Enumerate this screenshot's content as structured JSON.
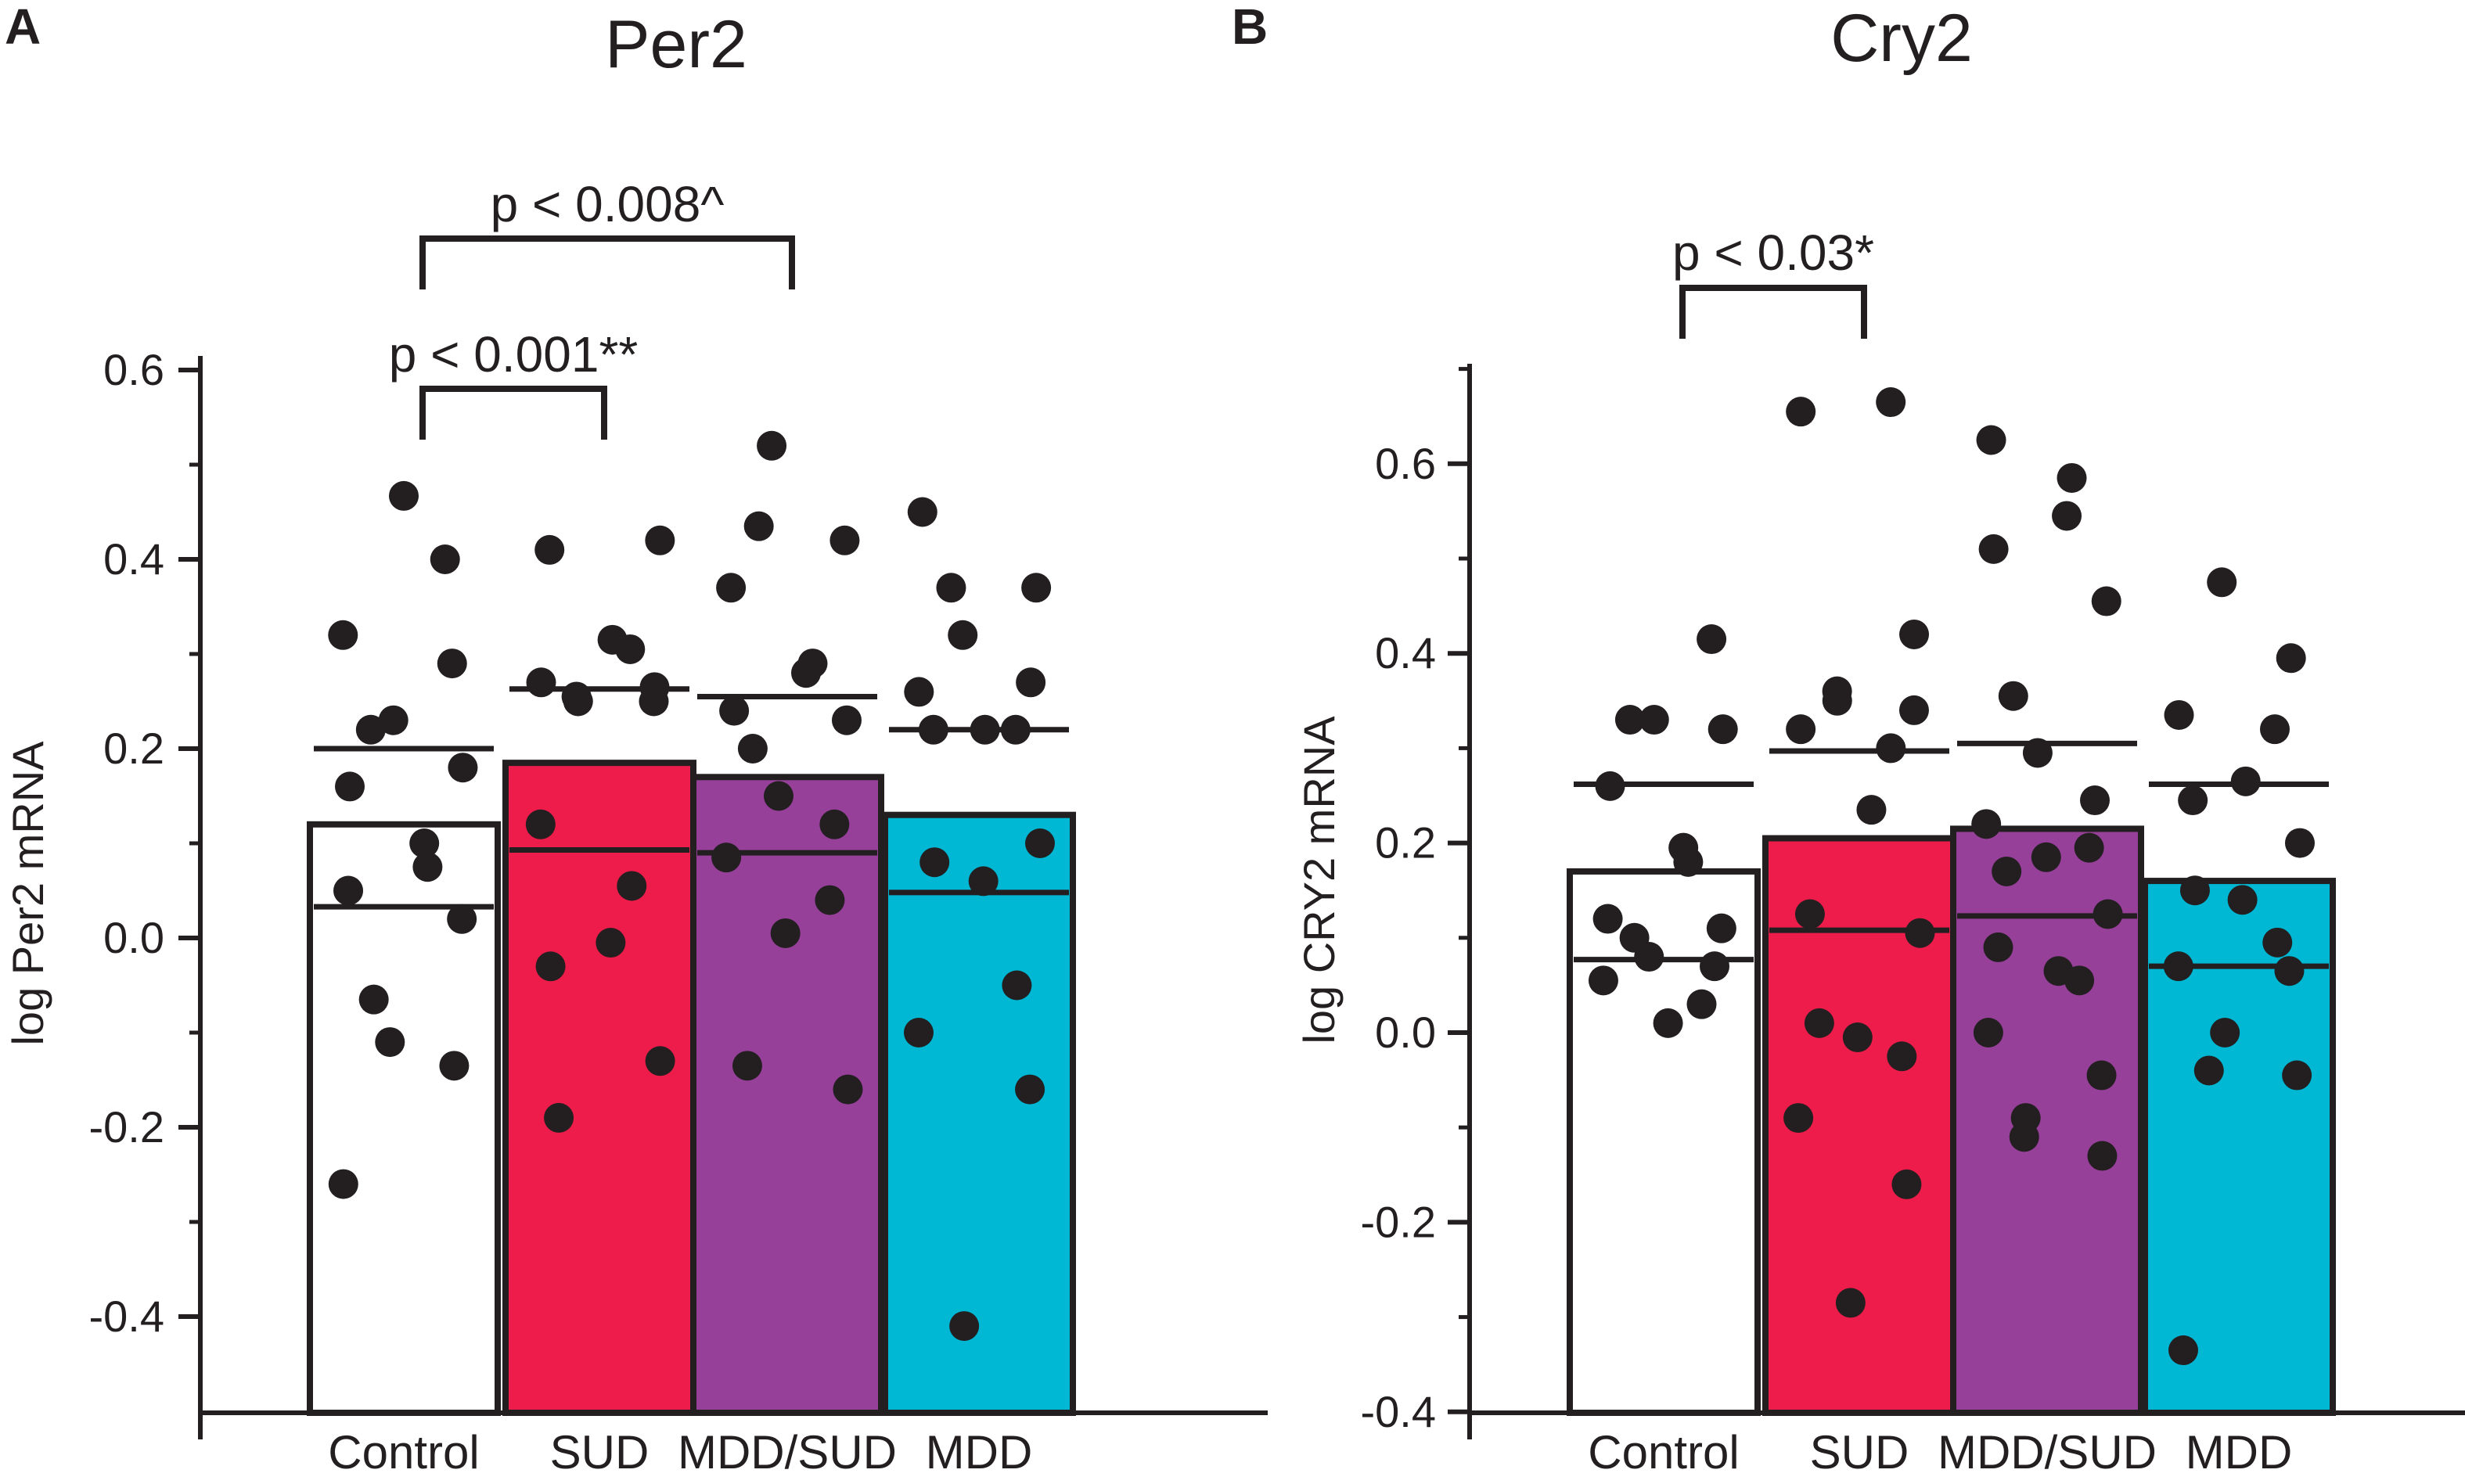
{
  "chart_data": [
    {
      "type": "bar",
      "panel": "A",
      "title": "Per2",
      "xlabel": "",
      "ylabel": "log Per2 mRNA",
      "ylim": [
        -0.5,
        0.6
      ],
      "yticks": [
        0.6,
        0.4,
        0.2,
        0.0,
        -0.2,
        -0.4
      ],
      "ytick_labels": [
        "0.6",
        "0.4",
        "0.2",
        "0.0",
        "-0.2",
        "-0.4"
      ],
      "categories": [
        "Control",
        "SUD",
        "MDD/SUD",
        "MDD"
      ],
      "colors": [
        "#ffffff",
        "#ed1c4a",
        "#96409a",
        "#00b8d4"
      ],
      "values": [
        0.12,
        0.185,
        0.17,
        0.13
      ],
      "error_upper": [
        0.2,
        0.263,
        0.255,
        0.22
      ],
      "error_lower": [
        0.033,
        0.093,
        0.09,
        0.048
      ],
      "points": [
        [
          0.467,
          0.4,
          0.32,
          0.29,
          0.23,
          0.22,
          0.18,
          0.16,
          0.1,
          0.075,
          0.05,
          0.02,
          -0.065,
          -0.11,
          -0.135,
          -0.26
        ],
        [
          0.42,
          0.41,
          0.315,
          0.305,
          0.27,
          0.265,
          0.255,
          0.25,
          0.25,
          0.12,
          0.055,
          -0.005,
          -0.03,
          -0.13,
          -0.19
        ],
        [
          0.52,
          0.435,
          0.42,
          0.37,
          0.29,
          0.28,
          0.24,
          0.23,
          0.2,
          0.15,
          0.12,
          0.085,
          0.04,
          0.005,
          -0.135,
          -0.16
        ],
        [
          0.45,
          0.37,
          0.37,
          0.32,
          0.27,
          0.26,
          0.22,
          0.22,
          0.22,
          0.1,
          0.08,
          0.06,
          -0.05,
          -0.1,
          -0.16,
          -0.41
        ]
      ],
      "annotations": [
        {
          "text": "p < 0.001**",
          "from": "Control",
          "to": "SUD"
        },
        {
          "text": "p < 0.008^",
          "from": "Control",
          "to": "MDD/SUD"
        }
      ]
    },
    {
      "type": "bar",
      "panel": "B",
      "title": "Cry2",
      "xlabel": "",
      "ylabel": "log CRY2 mRNA",
      "ylim": [
        -0.4,
        0.7
      ],
      "yticks": [
        0.6,
        0.4,
        0.2,
        0.0,
        -0.2,
        -0.4
      ],
      "ytick_labels": [
        "0.6",
        "0.4",
        "0.2",
        "0.0",
        "-0.2",
        "-0.4"
      ],
      "categories": [
        "Control",
        "SUD",
        "MDD/SUD",
        "MDD"
      ],
      "colors": [
        "#ffffff",
        "#ed1c4a",
        "#96409a",
        "#00b8d4"
      ],
      "values": [
        0.17,
        0.205,
        0.215,
        0.16
      ],
      "error_upper": [
        0.262,
        0.297,
        0.305,
        0.262
      ],
      "error_lower": [
        0.077,
        0.108,
        0.123,
        0.07
      ],
      "points": [
        [
          0.415,
          0.33,
          0.33,
          0.32,
          0.26,
          0.195,
          0.18,
          0.12,
          0.11,
          0.1,
          0.08,
          0.07,
          0.055,
          0.03,
          0.01
        ],
        [
          0.665,
          0.655,
          0.42,
          0.36,
          0.35,
          0.34,
          0.32,
          0.3,
          0.235,
          0.125,
          0.105,
          0.01,
          -0.005,
          -0.025,
          -0.09,
          -0.16,
          -0.285
        ],
        [
          0.625,
          0.585,
          0.545,
          0.51,
          0.455,
          0.355,
          0.295,
          0.245,
          0.22,
          0.195,
          0.185,
          0.17,
          0.125,
          0.09,
          0.065,
          0.055,
          0.0,
          -0.045,
          -0.09,
          -0.11,
          -0.13
        ],
        [
          0.475,
          0.395,
          0.335,
          0.32,
          0.265,
          0.245,
          0.2,
          0.15,
          0.14,
          0.095,
          0.07,
          0.065,
          0.0,
          -0.04,
          -0.045,
          -0.335
        ]
      ],
      "annotations": [
        {
          "text": "p < 0.03*",
          "from": "Control",
          "to": "SUD"
        }
      ]
    }
  ]
}
